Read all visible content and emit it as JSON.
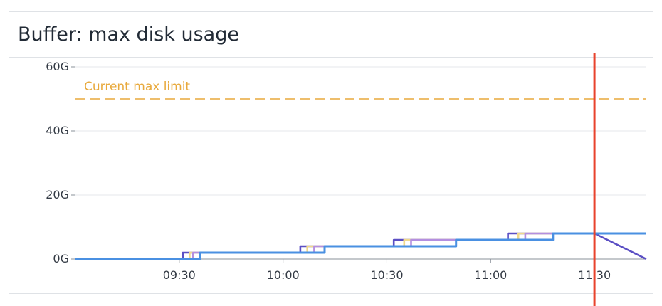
{
  "panel": {
    "title": "Buffer: max disk usage"
  },
  "chart_data": {
    "type": "line",
    "title": "Buffer: max disk usage",
    "xlabel": "",
    "ylabel": "",
    "x_ticks": [
      "09:30",
      "10:00",
      "10:30",
      "11:00",
      "11:30"
    ],
    "y_ticks": [
      "0G",
      "20G",
      "40G",
      "60G"
    ],
    "ylim": [
      0,
      60
    ],
    "xlim": [
      "09:00",
      "11:45"
    ],
    "grid": true,
    "threshold": {
      "label": "Current max limit",
      "value": 50,
      "color": "#e8a93c",
      "style": "dashed"
    },
    "marker": {
      "x": "11:30",
      "color": "#e8432d"
    },
    "series": [
      {
        "color": "#5b4fc4",
        "points": [
          [
            "09:00",
            0
          ],
          [
            "09:31",
            0
          ],
          [
            "09:31",
            2
          ],
          [
            "09:50",
            2
          ],
          [
            "09:50",
            2
          ],
          [
            "10:05",
            2
          ],
          [
            "10:05",
            4
          ],
          [
            "10:19",
            4
          ],
          [
            "10:19",
            4
          ],
          [
            "10:32",
            4
          ],
          [
            "10:32",
            6
          ],
          [
            "10:49",
            6
          ],
          [
            "10:49",
            6
          ],
          [
            "11:05",
            6
          ],
          [
            "11:05",
            8
          ],
          [
            "11:17",
            8
          ],
          [
            "11:17",
            8
          ],
          [
            "11:30",
            8
          ],
          [
            "11:45",
            0
          ]
        ]
      },
      {
        "color": "#f0d88c",
        "points": [
          [
            "09:00",
            0
          ],
          [
            "09:33",
            0
          ],
          [
            "09:33",
            2
          ],
          [
            "09:48",
            2
          ],
          [
            "09:52",
            2
          ],
          [
            "10:07",
            2
          ],
          [
            "10:07",
            4
          ],
          [
            "10:20",
            4
          ],
          [
            "10:22",
            4
          ],
          [
            "10:35",
            4
          ],
          [
            "10:35",
            6
          ],
          [
            "10:50",
            6
          ],
          [
            "10:52",
            6
          ],
          [
            "11:08",
            6
          ],
          [
            "11:08",
            8
          ],
          [
            "11:22",
            8
          ],
          [
            "11:30",
            8
          ]
        ]
      },
      {
        "color": "#b48fe0",
        "points": [
          [
            "09:00",
            0
          ],
          [
            "09:34",
            0
          ],
          [
            "09:34",
            2
          ],
          [
            "09:50",
            2
          ],
          [
            "09:53",
            2
          ],
          [
            "10:09",
            2
          ],
          [
            "10:09",
            4
          ],
          [
            "10:21",
            4
          ],
          [
            "10:23",
            4
          ],
          [
            "10:37",
            4
          ],
          [
            "10:37",
            6
          ],
          [
            "10:52",
            6
          ],
          [
            "10:53",
            6
          ],
          [
            "11:10",
            6
          ],
          [
            "11:10",
            8
          ],
          [
            "11:23",
            8
          ],
          [
            "11:30",
            8
          ]
        ]
      },
      {
        "color": "#4a90e2",
        "points": [
          [
            "09:00",
            0
          ],
          [
            "09:36",
            0
          ],
          [
            "09:36",
            2
          ],
          [
            "10:12",
            2
          ],
          [
            "10:12",
            4
          ],
          [
            "10:50",
            4
          ],
          [
            "10:50",
            6
          ],
          [
            "11:18",
            6
          ],
          [
            "11:18",
            8
          ],
          [
            "11:45",
            8
          ]
        ]
      }
    ]
  }
}
